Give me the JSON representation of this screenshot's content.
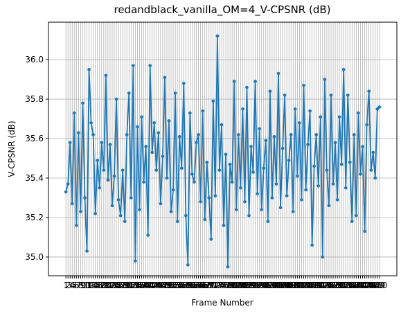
{
  "chart_data": {
    "type": "line",
    "title": "redandblack_vanilla_OM=4_V-CPSNR (dB)",
    "x_label": "Frame Number",
    "y_label": "V-CPSNR (dB)",
    "color": "#1f77b4",
    "grid": true,
    "categories": [
      "1",
      "2",
      "3",
      "4",
      "5",
      "6",
      "7",
      "8",
      "9",
      "10",
      "11",
      "12",
      "13",
      "14",
      "15",
      "16",
      "17",
      "18",
      "19",
      "20",
      "21",
      "22",
      "23",
      "24",
      "25",
      "26",
      "27",
      "28",
      "29",
      "30",
      "31",
      "32",
      "33",
      "34",
      "35",
      "36",
      "37",
      "38",
      "39",
      "40",
      "41",
      "42",
      "43",
      "44",
      "45",
      "46",
      "47",
      "48",
      "49",
      "50",
      "51",
      "52",
      "53",
      "54",
      "55",
      "56",
      "57",
      "58",
      "59",
      "60",
      "61",
      "62",
      "63",
      "64",
      "65",
      "66",
      "67",
      "68",
      "69",
      "70",
      "71",
      "72",
      "73",
      "74",
      "75",
      "76",
      "77",
      "78",
      "79",
      "80",
      "81",
      "82",
      "83",
      "84",
      "85",
      "86",
      "87",
      "88",
      "89",
      "90",
      "91",
      "92",
      "93",
      "94",
      "95",
      "96",
      "97",
      "98",
      "99",
      "100",
      "101",
      "102",
      "103",
      "104",
      "105",
      "106",
      "107",
      "108",
      "109",
      "110",
      "111",
      "112",
      "113",
      "114",
      "115",
      "116",
      "117",
      "118",
      "119",
      "120",
      "121",
      "122",
      "123",
      "124",
      "125",
      "126",
      "127",
      "128",
      "129",
      "130",
      "131",
      "132",
      "133",
      "134",
      "135",
      "136",
      "137",
      "138",
      "139",
      "140",
      "141",
      "142",
      "143",
      "144",
      "145",
      "146",
      "147",
      "148",
      "149",
      "150"
    ],
    "values": [
      35.33,
      35.37,
      35.58,
      35.27,
      35.73,
      35.16,
      35.63,
      35.23,
      35.78,
      35.3,
      35.03,
      35.95,
      35.68,
      35.62,
      35.22,
      35.49,
      35.35,
      35.58,
      35.44,
      35.92,
      35.39,
      35.57,
      35.26,
      35.41,
      35.8,
      35.29,
      35.21,
      35.44,
      35.18,
      35.62,
      35.83,
      35.3,
      35.97,
      34.98,
      35.66,
      35.24,
      35.71,
      35.38,
      35.56,
      35.11,
      35.97,
      35.53,
      35.68,
      35.44,
      35.63,
      35.27,
      35.51,
      35.91,
      35.4,
      35.69,
      35.23,
      35.34,
      35.83,
      35.18,
      35.61,
      35.45,
      35.88,
      35.21,
      34.96,
      35.73,
      35.42,
      35.38,
      35.58,
      35.62,
      35.28,
      35.74,
      35.19,
      35.48,
      35.3,
      35.09,
      35.79,
      35.31,
      36.12,
      35.44,
      35.67,
      35.16,
      35.52,
      34.95,
      35.47,
      35.38,
      35.89,
      35.24,
      35.62,
      35.35,
      35.75,
      35.28,
      35.86,
      35.21,
      35.56,
      35.43,
      35.89,
      35.32,
      35.65,
      35.24,
      35.45,
      35.59,
      35.18,
      35.84,
      35.3,
      35.61,
      35.37,
      35.93,
      35.25,
      35.55,
      35.82,
      35.31,
      35.49,
      35.62,
      35.23,
      35.75,
      35.41,
      35.68,
      35.29,
      35.87,
      35.34,
      35.57,
      35.74,
      35.06,
      35.46,
      35.62,
      35.36,
      35.71,
      35.0,
      35.9,
      35.44,
      35.26,
      35.82,
      35.37,
      35.58,
      35.29,
      35.71,
      35.47,
      35.95,
      35.35,
      35.82,
      35.48,
      35.18,
      35.62,
      35.21,
      35.73,
      35.42,
      35.56,
      35.13,
      35.67,
      35.84,
      35.44,
      35.53,
      35.4,
      35.75,
      35.76
    ],
    "ylim": [
      34.905,
      36.19
    ],
    "yticks": [
      35.0,
      35.2,
      35.4,
      35.6,
      35.8,
      36.0
    ]
  }
}
